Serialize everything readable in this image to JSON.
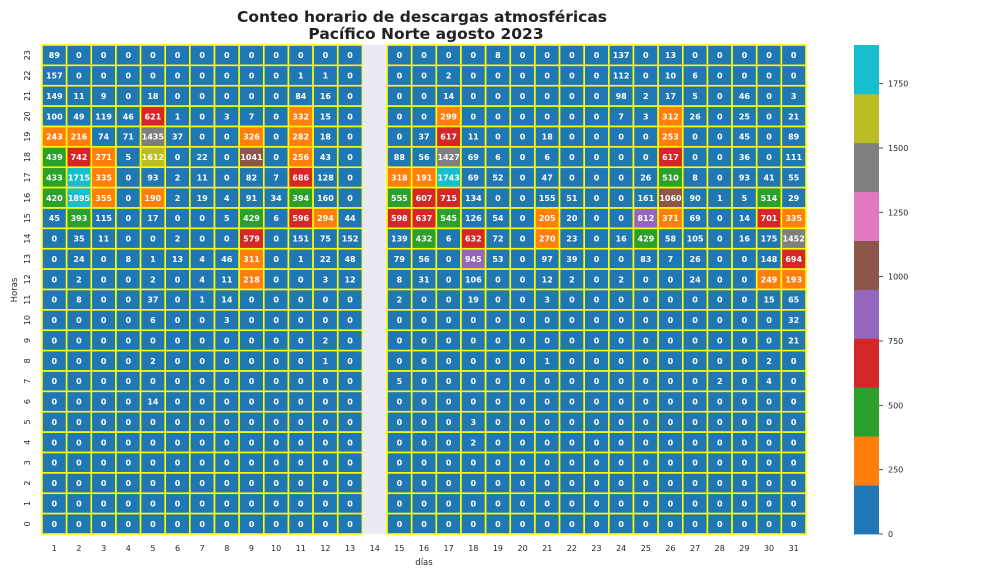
{
  "chart_data": {
    "type": "heatmap",
    "title_line1": "Conteo horario de descargas atmosféricas",
    "title_line2": "Pacífico Norte agosto 2023",
    "xlabel": "días",
    "ylabel": "Horas",
    "x_categories": [
      "1",
      "2",
      "3",
      "4",
      "5",
      "6",
      "7",
      "8",
      "9",
      "10",
      "11",
      "12",
      "13",
      "14",
      "15",
      "16",
      "17",
      "18",
      "19",
      "20",
      "21",
      "22",
      "23",
      "24",
      "25",
      "26",
      "27",
      "28",
      "29",
      "30",
      "31"
    ],
    "y_categories_top_to_bottom": [
      "23",
      "22",
      "21",
      "20",
      "19",
      "18",
      "17",
      "16",
      "15",
      "14",
      "13",
      "12",
      "11",
      "10",
      "9",
      "8",
      "7",
      "6",
      "5",
      "4",
      "3",
      "2",
      "1",
      "0"
    ],
    "missing_day": "14",
    "cell_border_color": "#ffff00",
    "missing_color": "#eaeaf2",
    "values": [
      [
        89,
        0,
        0,
        0,
        0,
        0,
        0,
        0,
        0,
        0,
        0,
        0,
        0,
        null,
        0,
        0,
        0,
        0,
        8,
        0,
        0,
        0,
        0,
        137,
        0,
        13,
        0,
        0,
        0,
        0,
        0
      ],
      [
        157,
        0,
        0,
        0,
        0,
        0,
        0,
        0,
        0,
        0,
        1,
        1,
        0,
        null,
        0,
        0,
        2,
        0,
        0,
        0,
        0,
        0,
        0,
        112,
        0,
        10,
        6,
        0,
        0,
        0,
        0
      ],
      [
        149,
        11,
        9,
        0,
        18,
        0,
        0,
        0,
        0,
        0,
        84,
        16,
        0,
        null,
        0,
        0,
        14,
        0,
        0,
        0,
        0,
        0,
        0,
        98,
        2,
        17,
        5,
        0,
        46,
        0,
        3
      ],
      [
        100,
        49,
        119,
        46,
        621,
        1,
        0,
        3,
        7,
        0,
        332,
        15,
        0,
        null,
        0,
        0,
        299,
        0,
        0,
        0,
        0,
        0,
        0,
        7,
        3,
        312,
        26,
        0,
        25,
        0,
        21
      ],
      [
        243,
        216,
        74,
        71,
        1435,
        37,
        0,
        0,
        326,
        0,
        282,
        18,
        0,
        null,
        0,
        37,
        617,
        11,
        0,
        0,
        18,
        0,
        0,
        0,
        0,
        253,
        0,
        0,
        45,
        0,
        89
      ],
      [
        439,
        742,
        271,
        5,
        1612,
        0,
        22,
        0,
        1041,
        0,
        256,
        43,
        0,
        null,
        88,
        56,
        1427,
        69,
        6,
        0,
        6,
        0,
        0,
        0,
        0,
        617,
        0,
        0,
        36,
        0,
        111
      ],
      [
        433,
        1715,
        335,
        0,
        93,
        2,
        11,
        0,
        82,
        7,
        686,
        128,
        0,
        null,
        318,
        191,
        1743,
        69,
        52,
        0,
        47,
        0,
        0,
        0,
        26,
        510,
        8,
        0,
        93,
        41,
        55
      ],
      [
        420,
        1895,
        355,
        0,
        190,
        2,
        19,
        4,
        91,
        34,
        394,
        160,
        0,
        null,
        555,
        607,
        715,
        134,
        0,
        0,
        155,
        51,
        0,
        0,
        161,
        1060,
        90,
        1,
        5,
        514,
        29
      ],
      [
        45,
        393,
        115,
        0,
        17,
        0,
        0,
        5,
        429,
        6,
        596,
        294,
        44,
        null,
        598,
        637,
        545,
        126,
        54,
        0,
        205,
        20,
        0,
        0,
        812,
        371,
        69,
        0,
        14,
        701,
        335
      ],
      [
        0,
        35,
        11,
        0,
        0,
        2,
        0,
        0,
        579,
        0,
        151,
        75,
        152,
        null,
        139,
        432,
        6,
        632,
        72,
        0,
        270,
        23,
        0,
        16,
        429,
        58,
        105,
        0,
        16,
        175,
        1452
      ],
      [
        0,
        24,
        0,
        8,
        1,
        13,
        4,
        46,
        311,
        0,
        1,
        22,
        48,
        null,
        79,
        56,
        0,
        945,
        53,
        0,
        97,
        39,
        0,
        0,
        83,
        7,
        26,
        0,
        0,
        148,
        694
      ],
      [
        0,
        2,
        0,
        0,
        2,
        0,
        4,
        11,
        218,
        0,
        0,
        3,
        12,
        null,
        8,
        31,
        0,
        106,
        0,
        0,
        12,
        2,
        0,
        2,
        0,
        0,
        24,
        0,
        0,
        249,
        193
      ],
      [
        0,
        8,
        0,
        0,
        37,
        0,
        1,
        14,
        0,
        0,
        0,
        0,
        0,
        null,
        2,
        0,
        0,
        19,
        0,
        0,
        3,
        0,
        0,
        0,
        0,
        0,
        0,
        0,
        0,
        15,
        65
      ],
      [
        0,
        0,
        0,
        0,
        6,
        0,
        0,
        3,
        0,
        0,
        0,
        0,
        0,
        null,
        0,
        0,
        0,
        0,
        0,
        0,
        0,
        0,
        0,
        0,
        0,
        0,
        0,
        0,
        0,
        0,
        32
      ],
      [
        0,
        0,
        0,
        0,
        0,
        0,
        0,
        0,
        0,
        0,
        0,
        2,
        0,
        null,
        0,
        0,
        0,
        0,
        0,
        0,
        0,
        0,
        0,
        0,
        0,
        0,
        0,
        0,
        0,
        0,
        21
      ],
      [
        0,
        0,
        0,
        0,
        2,
        0,
        0,
        0,
        0,
        0,
        0,
        1,
        0,
        null,
        0,
        0,
        0,
        0,
        0,
        0,
        1,
        0,
        0,
        0,
        0,
        0,
        0,
        0,
        0,
        2,
        0
      ],
      [
        0,
        0,
        0,
        0,
        0,
        0,
        0,
        0,
        0,
        0,
        0,
        0,
        0,
        null,
        5,
        0,
        0,
        0,
        0,
        0,
        0,
        0,
        0,
        0,
        0,
        0,
        0,
        2,
        0,
        4,
        0
      ],
      [
        0,
        0,
        0,
        0,
        14,
        0,
        0,
        0,
        0,
        0,
        0,
        0,
        0,
        null,
        0,
        0,
        0,
        0,
        0,
        0,
        0,
        0,
        0,
        0,
        0,
        0,
        0,
        0,
        0,
        0,
        0
      ],
      [
        0,
        0,
        0,
        0,
        0,
        0,
        0,
        0,
        0,
        0,
        0,
        0,
        0,
        null,
        0,
        0,
        0,
        3,
        0,
        0,
        0,
        0,
        0,
        0,
        0,
        0,
        0,
        0,
        0,
        0,
        0
      ],
      [
        0,
        0,
        0,
        0,
        0,
        0,
        0,
        0,
        0,
        0,
        0,
        0,
        0,
        null,
        0,
        0,
        0,
        2,
        0,
        0,
        0,
        0,
        0,
        0,
        0,
        0,
        0,
        0,
        0,
        0,
        0
      ],
      [
        0,
        0,
        0,
        0,
        0,
        0,
        0,
        0,
        0,
        0,
        0,
        0,
        0,
        null,
        0,
        0,
        0,
        0,
        0,
        0,
        0,
        0,
        0,
        0,
        0,
        0,
        0,
        0,
        0,
        0,
        0
      ],
      [
        0,
        0,
        0,
        0,
        0,
        0,
        0,
        0,
        0,
        0,
        0,
        0,
        0,
        null,
        0,
        0,
        0,
        0,
        0,
        0,
        0,
        0,
        0,
        0,
        0,
        0,
        0,
        0,
        0,
        0,
        0
      ],
      [
        0,
        0,
        0,
        0,
        0,
        0,
        0,
        0,
        0,
        0,
        0,
        0,
        0,
        null,
        0,
        0,
        0,
        0,
        0,
        0,
        0,
        0,
        0,
        0,
        0,
        0,
        0,
        0,
        0,
        0,
        0
      ],
      [
        0,
        0,
        0,
        0,
        0,
        0,
        0,
        0,
        0,
        0,
        0,
        0,
        0,
        null,
        0,
        0,
        0,
        0,
        0,
        0,
        0,
        0,
        0,
        0,
        0,
        0,
        0,
        0,
        0,
        0,
        0
      ]
    ],
    "colorbar": {
      "range": [
        0,
        1900
      ],
      "bin_size": 190,
      "colors": [
        "#1f77b4",
        "#ff7f0e",
        "#2ca02c",
        "#d62728",
        "#9467bd",
        "#8c564b",
        "#e377c2",
        "#7f7f7f",
        "#bcbd22",
        "#17becf"
      ],
      "ticks": [
        0,
        250,
        500,
        750,
        1000,
        1250,
        1500,
        1750
      ],
      "tick_labels": [
        "0",
        "250",
        "500",
        "750",
        "1000",
        "1250",
        "1500",
        "1750"
      ]
    },
    "annotations": "cell values shown"
  }
}
